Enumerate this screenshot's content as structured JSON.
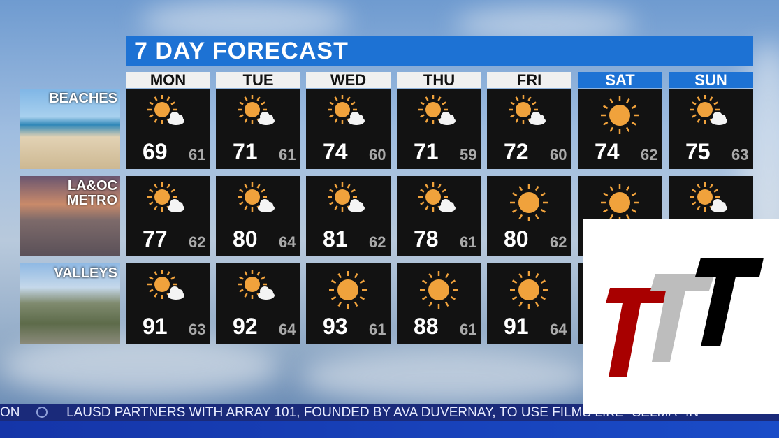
{
  "title": "7 DAY FORECAST",
  "days": [
    {
      "label": "MON",
      "weekend": false
    },
    {
      "label": "TUE",
      "weekend": false
    },
    {
      "label": "WED",
      "weekend": false
    },
    {
      "label": "THU",
      "weekend": false
    },
    {
      "label": "FRI",
      "weekend": false
    },
    {
      "label": "SAT",
      "weekend": true
    },
    {
      "label": "SUN",
      "weekend": true
    }
  ],
  "regions": [
    {
      "name": "BEACHES",
      "cells": [
        {
          "icon": "partly-sunny",
          "hi": "69",
          "lo": "61"
        },
        {
          "icon": "partly-sunny",
          "hi": "71",
          "lo": "61"
        },
        {
          "icon": "partly-sunny",
          "hi": "74",
          "lo": "60"
        },
        {
          "icon": "partly-sunny",
          "hi": "71",
          "lo": "59"
        },
        {
          "icon": "partly-sunny",
          "hi": "72",
          "lo": "60"
        },
        {
          "icon": "sunny",
          "hi": "74",
          "lo": "62"
        },
        {
          "icon": "partly-sunny",
          "hi": "75",
          "lo": "63"
        }
      ]
    },
    {
      "name": "LA&OC METRO",
      "cells": [
        {
          "icon": "partly-sunny",
          "hi": "77",
          "lo": "62"
        },
        {
          "icon": "partly-sunny",
          "hi": "80",
          "lo": "64"
        },
        {
          "icon": "partly-sunny",
          "hi": "81",
          "lo": "62"
        },
        {
          "icon": "partly-sunny",
          "hi": "78",
          "lo": "61"
        },
        {
          "icon": "sunny",
          "hi": "80",
          "lo": "62"
        },
        {
          "icon": "sunny",
          "hi": "",
          "lo": ""
        },
        {
          "icon": "partly-sunny",
          "hi": "",
          "lo": ""
        }
      ]
    },
    {
      "name": "VALLEYS",
      "cells": [
        {
          "icon": "partly-sunny",
          "hi": "91",
          "lo": "63"
        },
        {
          "icon": "partly-sunny",
          "hi": "92",
          "lo": "64"
        },
        {
          "icon": "sunny",
          "hi": "93",
          "lo": "61"
        },
        {
          "icon": "sunny",
          "hi": "88",
          "lo": "61"
        },
        {
          "icon": "sunny",
          "hi": "91",
          "lo": "64"
        },
        {
          "icon": "",
          "hi": "",
          "lo": ""
        },
        {
          "icon": "",
          "hi": "",
          "lo": ""
        }
      ]
    }
  ],
  "ticker": {
    "lead": "ON",
    "text": "LAUSD PARTNERS WITH ARRAY 101, FOUNDED BY AVA DUVERNAY, TO USE FILMS LIKE \"SELMA\" IN"
  },
  "colors": {
    "accent": "#1d72d4",
    "sun": "#f0a23c",
    "ticker_bg": "#1a2a7a",
    "logo_red": "#a80000",
    "logo_gray": "#bdbdbd",
    "logo_black": "#000000"
  }
}
